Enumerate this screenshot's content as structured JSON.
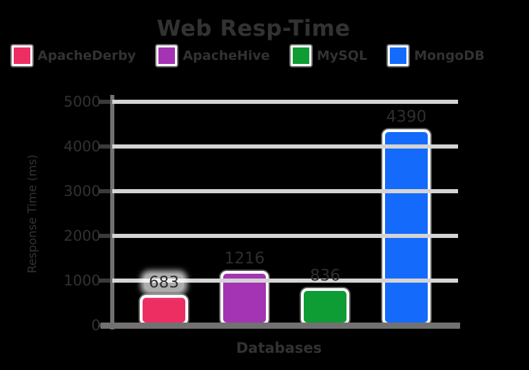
{
  "chart_data": {
    "type": "bar",
    "title": "Web Resp-Time",
    "xlabel": "Databases",
    "ylabel": "Response Time (ms)",
    "categories": [
      "ApacheDerby",
      "ApacheHive",
      "MySQL",
      "MongoDB"
    ],
    "values": [
      683,
      1216,
      836,
      4390
    ],
    "value_labels": [
      "683",
      "1216",
      "836",
      "4390"
    ],
    "colors": [
      "#ED2E63",
      "#A434B3",
      "#0E9C34",
      "#146BFB"
    ],
    "ylim": [
      0,
      5000
    ],
    "yticks": [
      0,
      1000,
      2000,
      3000,
      4000,
      5000
    ],
    "grid": true,
    "legend_position": "top",
    "background": "transparent"
  },
  "style_colors": {
    "text": "#323232",
    "gridline": "#d4d4d4",
    "axis": "#717171",
    "tick": "#3a3a3a",
    "bar_edge": "#ffffff",
    "label_halo": "#ffffff"
  }
}
